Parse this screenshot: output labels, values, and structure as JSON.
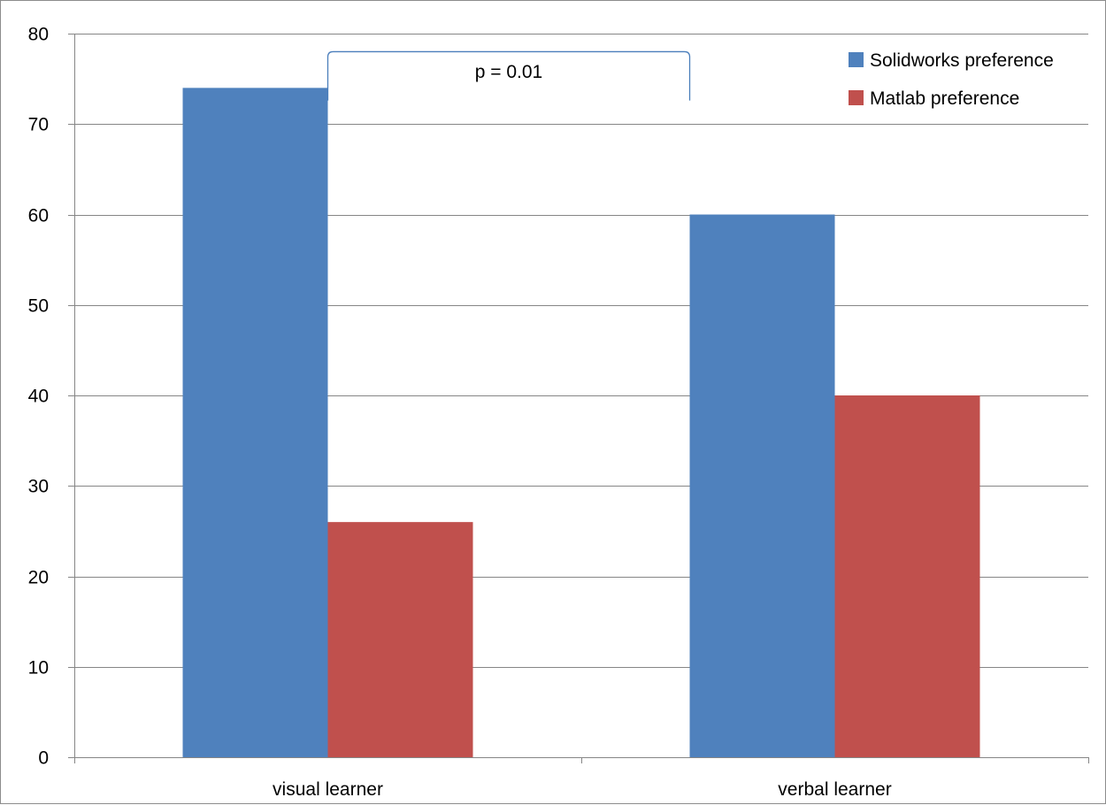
{
  "chart_data": {
    "type": "bar",
    "title": "",
    "xlabel": "",
    "ylabel": "",
    "categories": [
      "visual learner",
      "verbal learner"
    ],
    "series": [
      {
        "name": "Solidworks preference",
        "values": [
          74,
          60
        ],
        "color": "#4F81BD"
      },
      {
        "name": "Matlab preference",
        "values": [
          26,
          40
        ],
        "color": "#C0504D"
      }
    ],
    "ylim": [
      0,
      80
    ],
    "yticks": [
      0,
      10,
      20,
      30,
      40,
      50,
      60,
      70,
      80
    ],
    "grid": true,
    "legend": "top-right",
    "annotation": {
      "text": "p = 0.01",
      "between": [
        "visual learner",
        "verbal learner"
      ],
      "series": "Solidworks preference"
    }
  }
}
